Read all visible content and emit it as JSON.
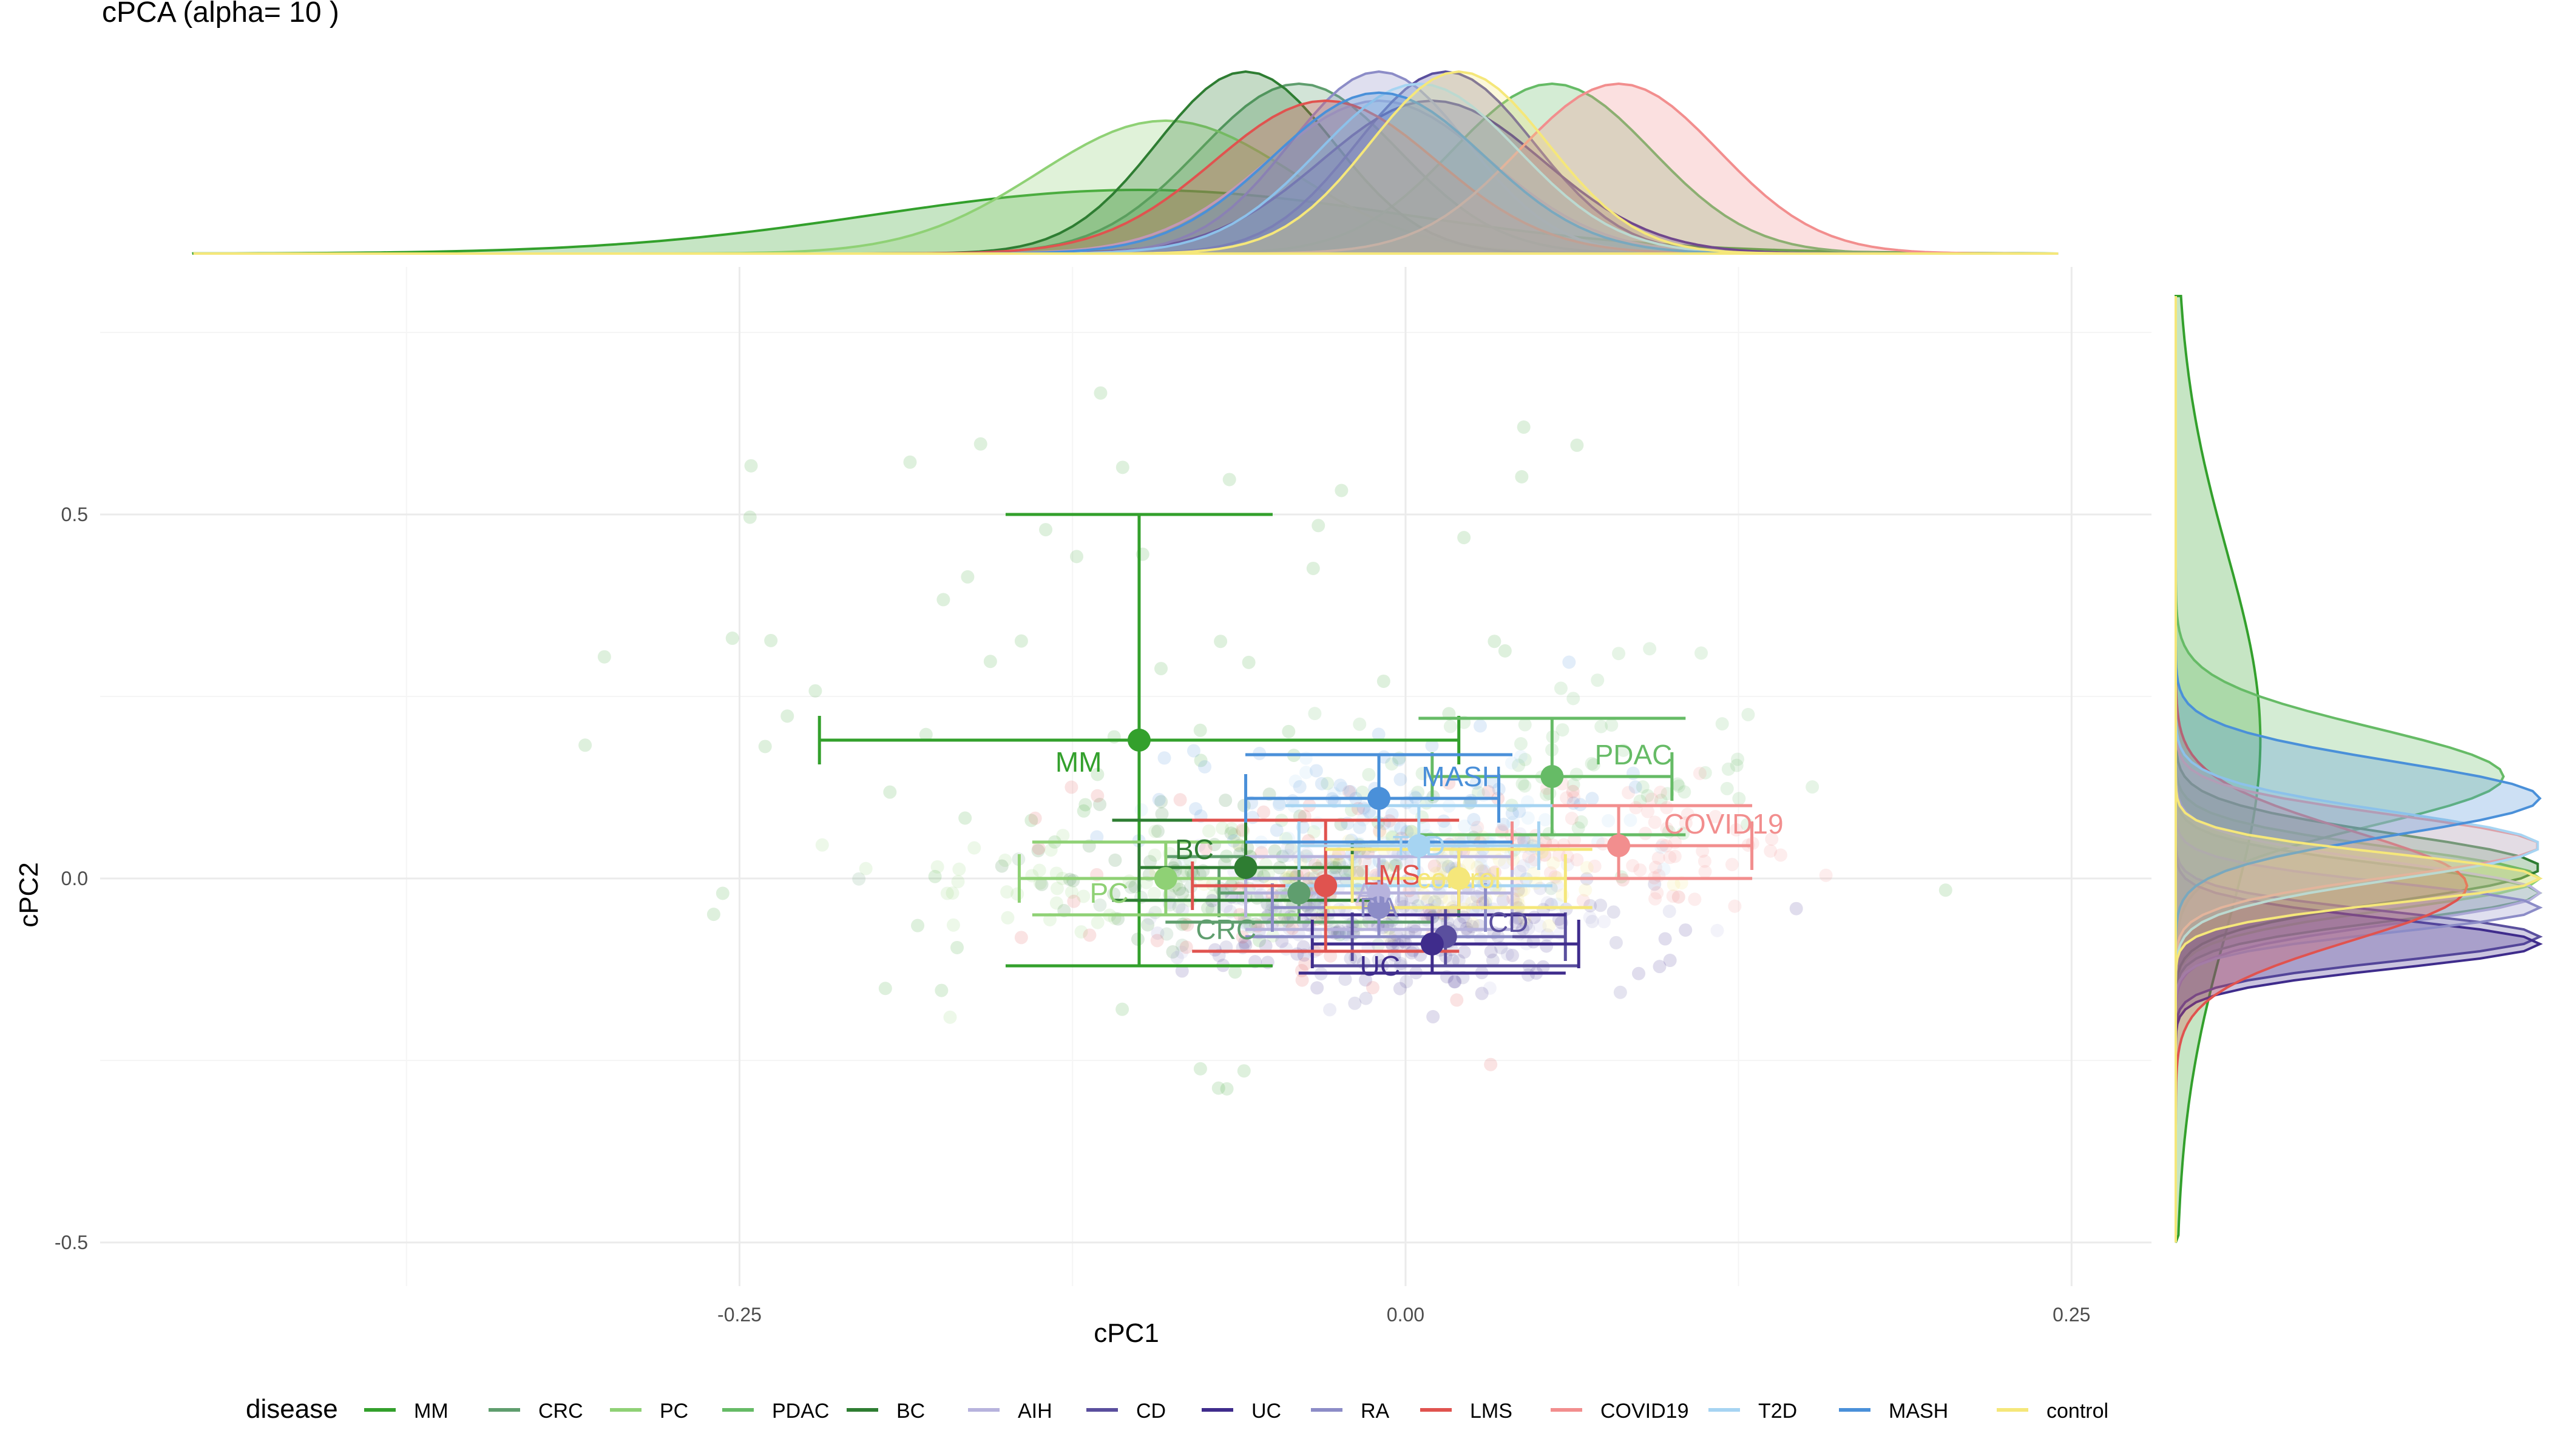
{
  "chart_data": {
    "type": "scatter",
    "title": "cPCA (alpha= 10 )",
    "xlabel": "cPC1",
    "ylabel": "cPC2",
    "xlim": [
      -0.49,
      0.28
    ],
    "ylim": [
      -0.56,
      0.84
    ],
    "x_ticks": [
      -0.25,
      0.0,
      0.25
    ],
    "x_tick_labels": [
      "-0.25",
      "0.00",
      "0.25"
    ],
    "y_ticks": [
      -0.5,
      0.0,
      0.5
    ],
    "y_tick_labels": [
      "-0.5",
      "0.0",
      "0.5"
    ],
    "grid": true,
    "legend_title": "disease",
    "legend_position": "bottom",
    "marginal_densities": [
      "top",
      "right"
    ],
    "series": [
      {
        "name": "MM",
        "color": "#33a02c",
        "mean": [
          -0.1,
          0.19
        ],
        "x_range": [
          -0.22,
          0.02
        ],
        "y_range": [
          -0.12,
          0.5
        ],
        "label_offset": [
          -0.014,
          -0.03
        ]
      },
      {
        "name": "CRC",
        "color": "#5f9e6e",
        "mean": [
          -0.04,
          -0.02
        ],
        "x_range": [
          -0.07,
          0.02
        ],
        "y_range": [
          -0.06,
          0.03
        ],
        "label_offset": [
          -0.016,
          -0.05
        ]
      },
      {
        "name": "PC",
        "color": "#8fd175",
        "mean": [
          -0.09,
          0.0
        ],
        "x_range": [
          -0.145,
          -0.03
        ],
        "y_range": [
          -0.05,
          0.05
        ],
        "label_offset": [
          -0.014,
          -0.02
        ]
      },
      {
        "name": "PDAC",
        "color": "#66bb66",
        "mean": [
          0.055,
          0.14
        ],
        "x_range": [
          0.01,
          0.1
        ],
        "y_range": [
          0.06,
          0.22
        ],
        "label_offset": [
          0.016,
          0.03
        ]
      },
      {
        "name": "BC",
        "color": "#2e7d32",
        "mean": [
          -0.06,
          0.015
        ],
        "x_range": [
          -0.1,
          -0.02
        ],
        "y_range": [
          -0.03,
          0.08
        ],
        "label_offset": [
          -0.012,
          0.025
        ]
      },
      {
        "name": "AIH",
        "color": "#b7b3dd",
        "mean": [
          -0.01,
          -0.02
        ],
        "x_range": [
          -0.06,
          0.04
        ],
        "y_range": [
          -0.07,
          0.03
        ],
        "label_offset": [
          0.0,
          0.0
        ]
      },
      {
        "name": "CD",
        "color": "#5a4f9e",
        "mean": [
          0.015,
          -0.08
        ],
        "x_range": [
          -0.02,
          0.06
        ],
        "y_range": [
          -0.12,
          -0.04
        ],
        "label_offset": [
          0.016,
          0.02
        ]
      },
      {
        "name": "UC",
        "color": "#3f2c8c",
        "mean": [
          0.01,
          -0.09
        ],
        "x_range": [
          -0.035,
          0.065
        ],
        "y_range": [
          -0.13,
          -0.05
        ],
        "label_offset": [
          -0.012,
          -0.03
        ]
      },
      {
        "name": "RA",
        "color": "#8c8cc7",
        "mean": [
          -0.01,
          -0.04
        ],
        "x_range": [
          -0.05,
          0.03
        ],
        "y_range": [
          -0.08,
          0.0
        ],
        "label_offset": [
          0.0,
          0.0
        ]
      },
      {
        "name": "LMS",
        "color": "#e0534f",
        "mean": [
          -0.03,
          -0.01
        ],
        "x_range": [
          -0.08,
          0.02
        ],
        "y_range": [
          -0.1,
          0.08
        ],
        "label_offset": [
          0.014,
          0.015
        ]
      },
      {
        "name": "COVID19",
        "color": "#f28e8e",
        "mean": [
          0.08,
          0.045
        ],
        "x_range": [
          0.04,
          0.13
        ],
        "y_range": [
          0.0,
          0.1
        ],
        "label_offset": [
          0.017,
          0.03
        ]
      },
      {
        "name": "T2D",
        "color": "#a6d4f2",
        "mean": [
          0.005,
          0.045
        ],
        "x_range": [
          -0.04,
          0.05
        ],
        "y_range": [
          -0.01,
          0.1
        ],
        "label_offset": [
          0.0,
          0.0
        ]
      },
      {
        "name": "MASH",
        "color": "#4a90d9",
        "mean": [
          -0.01,
          0.11
        ],
        "x_range": [
          -0.06,
          0.035
        ],
        "y_range": [
          0.05,
          0.17
        ],
        "label_offset": [
          0.016,
          0.03
        ]
      },
      {
        "name": "control",
        "color": "#f5e77a",
        "mean": [
          0.02,
          0.0
        ],
        "x_range": [
          -0.02,
          0.06
        ],
        "y_range": [
          -0.04,
          0.04
        ],
        "label_offset": [
          0.0,
          0.0
        ]
      }
    ]
  }
}
